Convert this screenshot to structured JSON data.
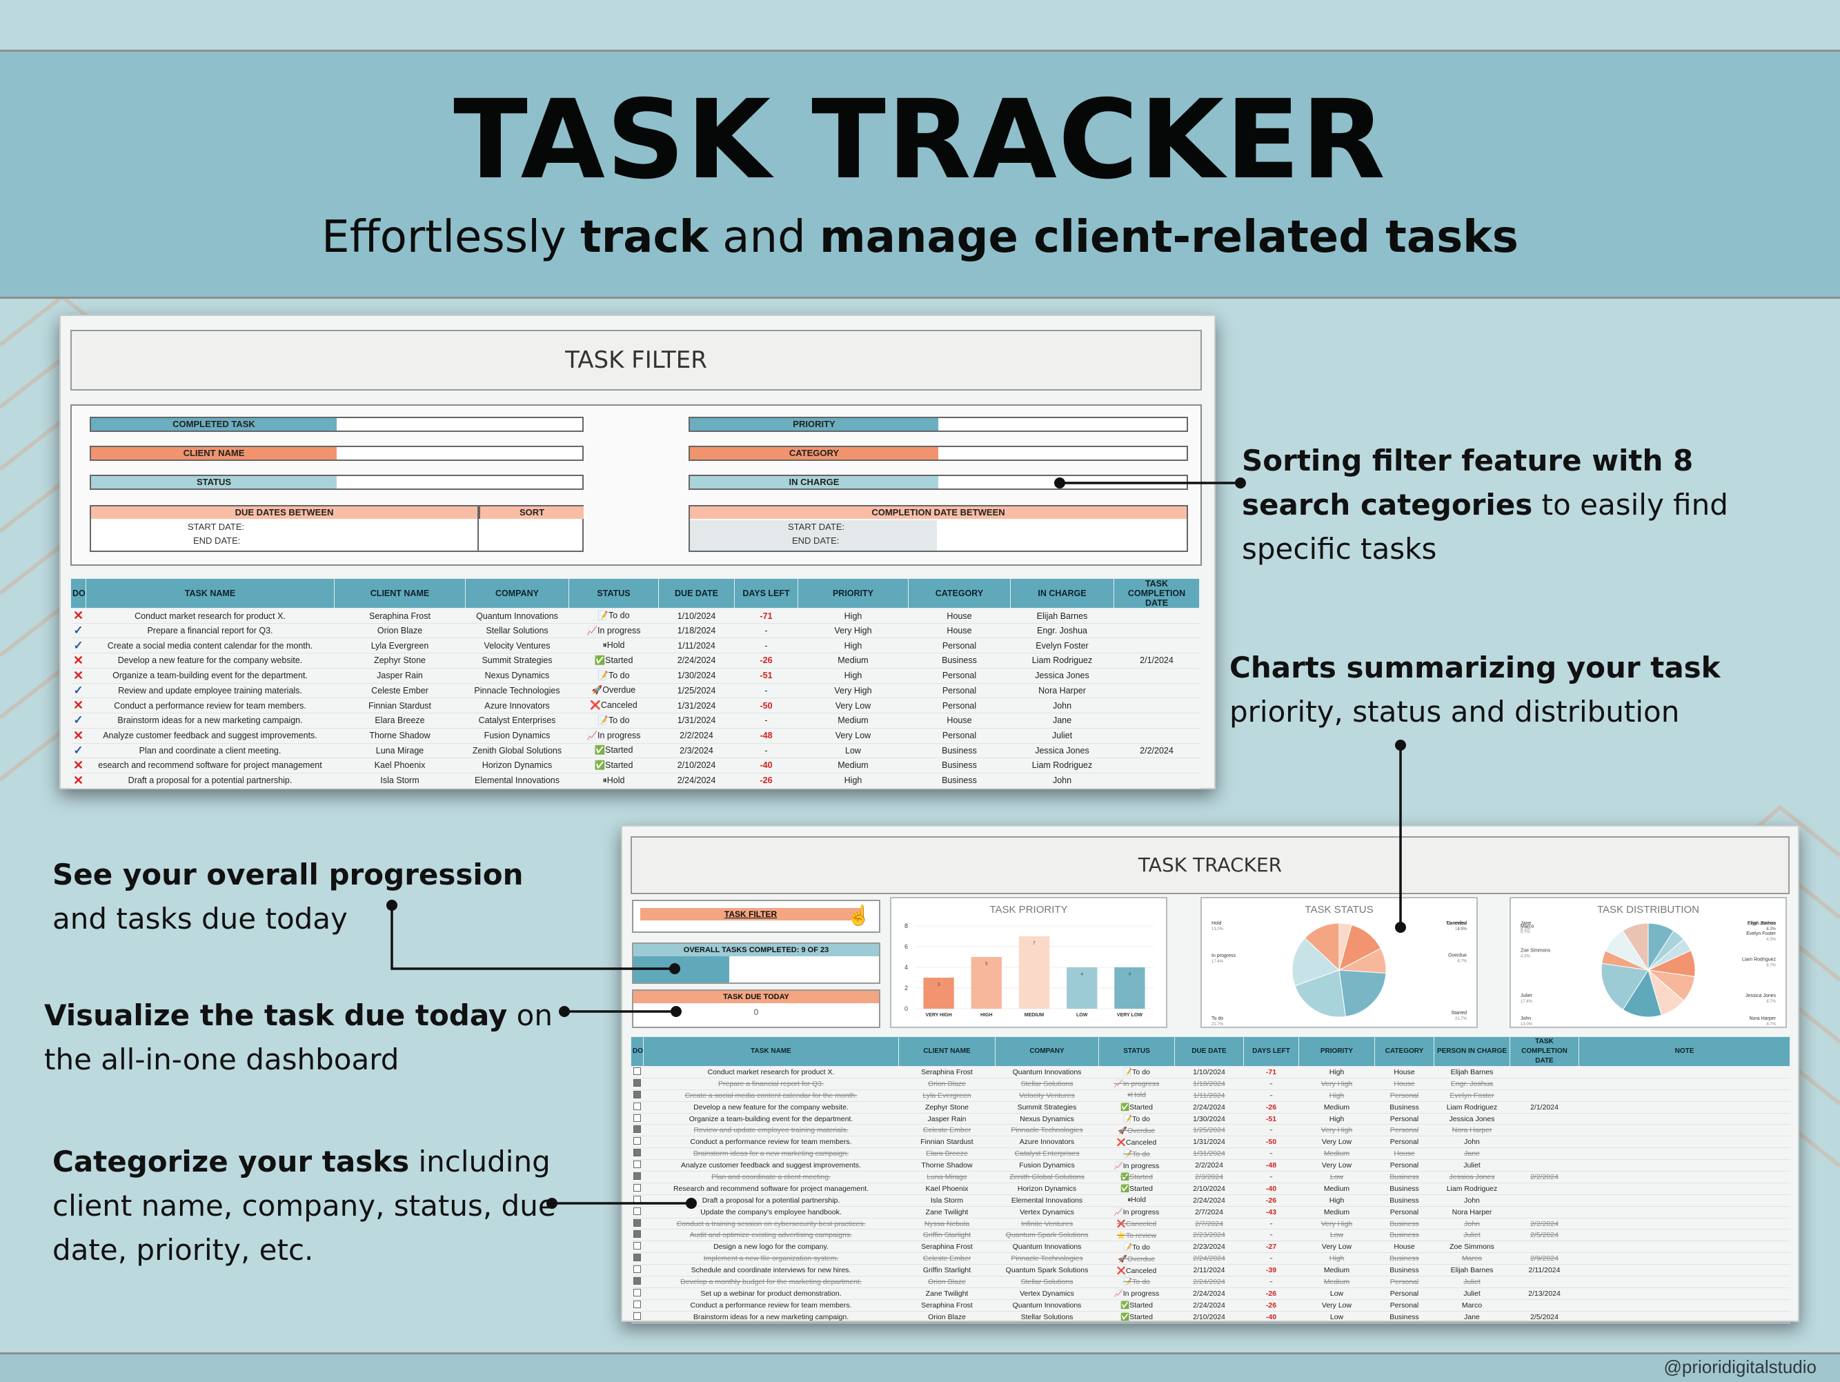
{
  "header": {
    "title": "TASK TRACKER",
    "subtitle_parts": [
      "Effortlessly ",
      "track",
      " and ",
      "manage client-related tasks"
    ]
  },
  "credit": "@prioridigitalstudio",
  "annotations": {
    "sorting": {
      "bold": "Sorting filter feature with 8 search categories",
      "rest": " to easily find specific tasks"
    },
    "charts": {
      "bold": "Charts summarizing your task",
      "rest": "priority, status and distribution"
    },
    "progression": {
      "bold": "See your overall progression",
      "rest": " and tasks due today"
    },
    "visualize": {
      "bold": "Visualize the task due today",
      "rest": " on the all-in-one dashboard"
    },
    "categorize": {
      "bold": "Categorize your tasks",
      "rest": " including client name, company, status, due date, priority, etc."
    }
  },
  "task_filter": {
    "title": "TASK FILTER",
    "fields_left": [
      "COMPLETED TASK",
      "CLIENT NAME",
      "STATUS"
    ],
    "fields_right": [
      "PRIORITY",
      "CATEGORY",
      "IN CHARGE"
    ],
    "due_dates_between": "DUE DATES BETWEEN",
    "sort": "SORT",
    "completion_between": "COMPLETION DATE BETWEEN",
    "start_date": "START DATE:",
    "end_date": "END DATE:",
    "columns": [
      "DONE",
      "TASK NAME",
      "CLIENT NAME",
      "COMPANY",
      "STATUS",
      "DUE DATE",
      "DAYS LEFT",
      "PRIORITY",
      "CATEGORY",
      "IN CHARGE",
      "TASK COMPLETION DATE"
    ],
    "rows": [
      {
        "done": "x",
        "task": "Conduct market research for product X.",
        "client": "Seraphina Frost",
        "company": "Quantum Innovations",
        "status": "📝To do",
        "due": "1/10/2024",
        "days": "-71",
        "priority": "High",
        "category": "House",
        "charge": "Elijah Barnes",
        "completion": ""
      },
      {
        "done": "v",
        "task": "Prepare a financial report for Q3.",
        "client": "Orion Blaze",
        "company": "Stellar Solutions",
        "status": "📈In progress",
        "due": "1/18/2024",
        "days": "-",
        "priority": "Very High",
        "category": "House",
        "charge": "Engr. Joshua",
        "completion": ""
      },
      {
        "done": "v",
        "task": "Create a social media content calendar for the month.",
        "client": "Lyla Evergreen",
        "company": "Velocity Ventures",
        "status": "⏸Hold",
        "due": "1/11/2024",
        "days": "-",
        "priority": "High",
        "category": "Personal",
        "charge": "Evelyn Foster",
        "completion": ""
      },
      {
        "done": "x",
        "task": "Develop a new feature for the company website.",
        "client": "Zephyr Stone",
        "company": "Summit Strategies",
        "status": "✅Started",
        "due": "2/24/2024",
        "days": "-26",
        "priority": "Medium",
        "category": "Business",
        "charge": "Liam Rodriguez",
        "completion": "2/1/2024"
      },
      {
        "done": "x",
        "task": "Organize a team-building event for the department.",
        "client": "Jasper Rain",
        "company": "Nexus Dynamics",
        "status": "📝To do",
        "due": "1/30/2024",
        "days": "-51",
        "priority": "High",
        "category": "Personal",
        "charge": "Jessica Jones",
        "completion": ""
      },
      {
        "done": "v",
        "task": "Review and update employee training materials.",
        "client": "Celeste Ember",
        "company": "Pinnacle Technologies",
        "status": "🚀Overdue",
        "due": "1/25/2024",
        "days": "-",
        "priority": "Very High",
        "category": "Personal",
        "charge": "Nora Harper",
        "completion": ""
      },
      {
        "done": "x",
        "task": "Conduct a performance review for team members.",
        "client": "Finnian Stardust",
        "company": "Azure Innovators",
        "status": "❌Canceled",
        "due": "1/31/2024",
        "days": "-50",
        "priority": "Very Low",
        "category": "Personal",
        "charge": "John",
        "completion": ""
      },
      {
        "done": "v",
        "task": "Brainstorm ideas for a new marketing campaign.",
        "client": "Elara Breeze",
        "company": "Catalyst Enterprises",
        "status": "📝To do",
        "due": "1/31/2024",
        "days": "-",
        "priority": "Medium",
        "category": "House",
        "charge": "Jane",
        "completion": ""
      },
      {
        "done": "x",
        "task": "Analyze customer feedback and suggest improvements.",
        "client": "Thorne Shadow",
        "company": "Fusion Dynamics",
        "status": "📈In progress",
        "due": "2/2/2024",
        "days": "-48",
        "priority": "Very Low",
        "category": "Personal",
        "charge": "Juliet",
        "completion": ""
      },
      {
        "done": "v",
        "task": "Plan and coordinate a client meeting.",
        "client": "Luna Mirage",
        "company": "Zenith Global Solutions",
        "status": "✅Started",
        "due": "2/3/2024",
        "days": "-",
        "priority": "Low",
        "category": "Business",
        "charge": "Jessica Jones",
        "completion": "2/2/2024"
      },
      {
        "done": "x",
        "task": "esearch and recommend software for project management",
        "client": "Kael Phoenix",
        "company": "Horizon Dynamics",
        "status": "✅Started",
        "due": "2/10/2024",
        "days": "-40",
        "priority": "Medium",
        "category": "Business",
        "charge": "Liam Rodriguez",
        "completion": ""
      },
      {
        "done": "x",
        "task": "Draft a proposal for a potential partnership.",
        "client": "Isla Storm",
        "company": "Elemental Innovations",
        "status": "⏸Hold",
        "due": "2/24/2024",
        "days": "-26",
        "priority": "High",
        "category": "Business",
        "charge": "John",
        "completion": ""
      }
    ]
  },
  "dashboard": {
    "title": "TASK TRACKER",
    "task_filter_link": "TASK FILTER",
    "overall_label": "OVERALL TASKS COMPLETED: 9 OF 23",
    "overall_progress": 0.39,
    "due_today_label": "TASK DUE TODAY",
    "due_today_value": "0",
    "priority_chart_title": "TASK PRIORITY",
    "status_chart_title": "TASK STATUS",
    "distribution_chart_title": "TASK DISTRIBUTION",
    "columns": [
      "DONE",
      "TASK NAME",
      "CLIENT NAME",
      "COMPANY",
      "STATUS",
      "DUE DATE",
      "DAYS LEFT",
      "PRIORITY",
      "CATEGORY",
      "PERSON IN CHARGE",
      "TASK COMPLETION DATE",
      "NOTE"
    ],
    "rows": [
      {
        "done": false,
        "task": "Conduct market research for product X.",
        "client": "Seraphina Frost",
        "company": "Quantum Innovations",
        "status": "📝To do",
        "due": "1/10/2024",
        "days": "-71",
        "priority": "High",
        "category": "House",
        "charge": "Elijah Barnes",
        "completion": ""
      },
      {
        "done": true,
        "task": "Prepare a financial report for Q3.",
        "client": "Orion Blaze",
        "company": "Stellar Solutions",
        "status": "📈In progress",
        "due": "1/18/2024",
        "days": "-",
        "priority": "Very High",
        "category": "House",
        "charge": "Engr. Joshua",
        "completion": ""
      },
      {
        "done": true,
        "task": "Create a social media content calendar for the month.",
        "client": "Lyla Evergreen",
        "company": "Velocity Ventures",
        "status": "⏸Hold",
        "due": "1/11/2024",
        "days": "-",
        "priority": "High",
        "category": "Personal",
        "charge": "Evelyn Foster",
        "completion": ""
      },
      {
        "done": false,
        "task": "Develop a new feature for the company website.",
        "client": "Zephyr Stone",
        "company": "Summit Strategies",
        "status": "✅Started",
        "due": "2/24/2024",
        "days": "-26",
        "priority": "Medium",
        "category": "Business",
        "charge": "Liam Rodriguez",
        "completion": "2/1/2024"
      },
      {
        "done": false,
        "task": "Organize a team-building event for the department.",
        "client": "Jasper Rain",
        "company": "Nexus Dynamics",
        "status": "📝To do",
        "due": "1/30/2024",
        "days": "-51",
        "priority": "High",
        "category": "Personal",
        "charge": "Jessica Jones",
        "completion": ""
      },
      {
        "done": true,
        "task": "Review and update employee training materials.",
        "client": "Celeste Ember",
        "company": "Pinnacle Technologies",
        "status": "🚀Overdue",
        "due": "1/25/2024",
        "days": "-",
        "priority": "Very High",
        "category": "Personal",
        "charge": "Nora Harper",
        "completion": ""
      },
      {
        "done": false,
        "task": "Conduct a performance review for team members.",
        "client": "Finnian Stardust",
        "company": "Azure Innovators",
        "status": "❌Canceled",
        "due": "1/31/2024",
        "days": "-50",
        "priority": "Very Low",
        "category": "Personal",
        "charge": "John",
        "completion": ""
      },
      {
        "done": true,
        "task": "Brainstorm ideas for a new marketing campaign.",
        "client": "Elara Breeze",
        "company": "Catalyst Enterprises",
        "status": "📝To do",
        "due": "1/31/2024",
        "days": "-",
        "priority": "Medium",
        "category": "House",
        "charge": "Jane",
        "completion": ""
      },
      {
        "done": false,
        "task": "Analyze customer feedback and suggest improvements.",
        "client": "Thorne Shadow",
        "company": "Fusion Dynamics",
        "status": "📈In progress",
        "due": "2/2/2024",
        "days": "-48",
        "priority": "Very Low",
        "category": "Personal",
        "charge": "Juliet",
        "completion": ""
      },
      {
        "done": true,
        "task": "Plan and coordinate a client meeting.",
        "client": "Luna Mirage",
        "company": "Zenith Global Solutions",
        "status": "✅Started",
        "due": "2/3/2024",
        "days": "-",
        "priority": "Low",
        "category": "Business",
        "charge": "Jessica Jones",
        "completion": "2/2/2024"
      },
      {
        "done": false,
        "task": "Research and recommend software for project management.",
        "client": "Kael Phoenix",
        "company": "Horizon Dynamics",
        "status": "✅Started",
        "due": "2/10/2024",
        "days": "-40",
        "priority": "Medium",
        "category": "Business",
        "charge": "Liam Rodriguez",
        "completion": ""
      },
      {
        "done": false,
        "task": "Draft a proposal for a potential partnership.",
        "client": "Isla Storm",
        "company": "Elemental Innovations",
        "status": "⏸Hold",
        "due": "2/24/2024",
        "days": "-26",
        "priority": "High",
        "category": "Business",
        "charge": "John",
        "completion": ""
      },
      {
        "done": false,
        "task": "Update the company's employee handbook.",
        "client": "Zane Twilight",
        "company": "Vertex Dynamics",
        "status": "📈In progress",
        "due": "2/7/2024",
        "days": "-43",
        "priority": "Medium",
        "category": "Personal",
        "charge": "Nora Harper",
        "completion": ""
      },
      {
        "done": true,
        "task": "Conduct a training session on cybersecurity best practices.",
        "client": "Nyssa Nebula",
        "company": "Infinite Ventures",
        "status": "❌Canceled",
        "due": "2/7/2024",
        "days": "-",
        "priority": "Very High",
        "category": "Business",
        "charge": "John",
        "completion": "2/2/2024"
      },
      {
        "done": true,
        "task": "Audit and optimize existing advertising campaigns.",
        "client": "Griffin Starlight",
        "company": "Quantum Spark Solutions",
        "status": "⭐To review",
        "due": "2/23/2024",
        "days": "-",
        "priority": "Low",
        "category": "Business",
        "charge": "Juliet",
        "completion": "2/5/2024"
      },
      {
        "done": false,
        "task": "Design a new logo for the company.",
        "client": "Seraphina Frost",
        "company": "Quantum Innovations",
        "status": "📝To do",
        "due": "2/23/2024",
        "days": "-27",
        "priority": "Very Low",
        "category": "House",
        "charge": "Zoe Simmons",
        "completion": ""
      },
      {
        "done": true,
        "task": "Implement a new file organization system.",
        "client": "Celeste Ember",
        "company": "Pinnacle Technologies",
        "status": "🚀Overdue",
        "due": "2/24/2024",
        "days": "-",
        "priority": "High",
        "category": "Business",
        "charge": "Marco",
        "completion": "2/9/2024"
      },
      {
        "done": false,
        "task": "Schedule and coordinate interviews for new hires.",
        "client": "Griffin Starlight",
        "company": "Quantum Spark Solutions",
        "status": "❌Canceled",
        "due": "2/11/2024",
        "days": "-39",
        "priority": "Medium",
        "category": "Business",
        "charge": "Elijah Barnes",
        "completion": "2/11/2024"
      },
      {
        "done": true,
        "task": "Develop a monthly budget for the marketing department.",
        "client": "Orion Blaze",
        "company": "Stellar Solutions",
        "status": "📝To do",
        "due": "2/24/2024",
        "days": "-",
        "priority": "Medium",
        "category": "Personal",
        "charge": "Juliet",
        "completion": ""
      },
      {
        "done": false,
        "task": "Set up a webinar for product demonstration.",
        "client": "Zane Twilight",
        "company": "Vertex Dynamics",
        "status": "📈In progress",
        "due": "2/24/2024",
        "days": "-26",
        "priority": "Low",
        "category": "Personal",
        "charge": "Juliet",
        "completion": "2/13/2024"
      },
      {
        "done": false,
        "task": "Conduct a performance review for team members.",
        "client": "Seraphina Frost",
        "company": "Quantum Innovations",
        "status": "✅Started",
        "due": "2/24/2024",
        "days": "-26",
        "priority": "Very Low",
        "category": "Personal",
        "charge": "Marco",
        "completion": ""
      },
      {
        "done": false,
        "task": "Brainstorm ideas for a new marketing campaign.",
        "client": "Orion Blaze",
        "company": "Stellar Solutions",
        "status": "✅Started",
        "due": "2/10/2024",
        "days": "-40",
        "priority": "Low",
        "category": "Business",
        "charge": "Jane",
        "completion": "2/5/2024"
      }
    ]
  },
  "chart_data": [
    {
      "type": "bar",
      "title": "TASK PRIORITY",
      "categories": [
        "VERY HIGH",
        "HIGH",
        "MEDIUM",
        "LOW",
        "VERY LOW"
      ],
      "values": [
        3,
        5,
        7,
        4,
        4
      ],
      "ylim": [
        0,
        8
      ],
      "yticks": [
        "0",
        "2",
        "4",
        "6",
        "8"
      ],
      "colors": [
        "#f29470",
        "#f7b79a",
        "#fbd9c8",
        "#9dcbd5",
        "#78b6c6"
      ]
    },
    {
      "type": "pie",
      "title": "TASK STATUS",
      "labels": [
        "To review",
        "Canceled",
        "Overdue",
        "Started",
        "To do",
        "In progress",
        "Hold"
      ],
      "values": [
        4.3,
        13.0,
        8.7,
        21.7,
        21.7,
        17.4,
        13.0
      ],
      "colors": [
        "#fbd9c8",
        "#f29470",
        "#f7b79a",
        "#78b6c6",
        "#a9d3da",
        "#c7e3e8",
        "#f4a582"
      ]
    },
    {
      "type": "pie",
      "title": "TASK DISTRIBUTION",
      "labels": [
        "Elijah Barnes",
        "Engr. Joshua",
        "Evelyn Foster",
        "Liam Rodriguez",
        "Jessica Jones",
        "Nora Harper",
        "John",
        "Juliet",
        "Zoe Simmons",
        "Marco",
        "Jane"
      ],
      "values": [
        8.7,
        4.3,
        4.3,
        8.7,
        8.7,
        8.7,
        13.0,
        17.4,
        4.3,
        8.7,
        8.7
      ],
      "colors": [
        "#78b6c6",
        "#a9d3da",
        "#c7e3e8",
        "#f29470",
        "#f7b79a",
        "#fbd9c8",
        "#5fa9bb",
        "#9dcbd5",
        "#f4a582",
        "#e6f2f4",
        "#eac3b2"
      ]
    }
  ]
}
